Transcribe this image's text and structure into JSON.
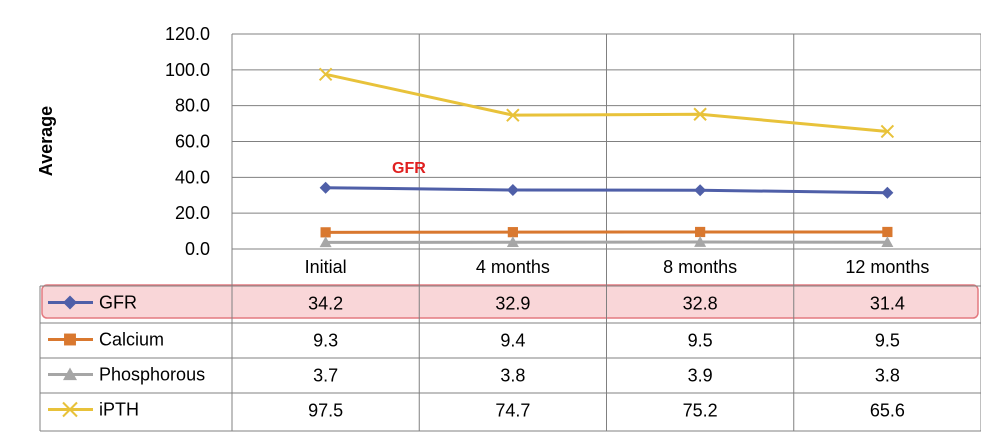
{
  "chart_data": {
    "type": "line",
    "title": "",
    "xlabel": "",
    "ylabel": "Average",
    "ylim": [
      0,
      120
    ],
    "yticks": [
      "120.0",
      "100.0",
      "80.0",
      "60.0",
      "40.0",
      "20.0",
      "0.0"
    ],
    "grid": true,
    "categories": [
      "Initial",
      "4 months",
      "8 months",
      "12 months"
    ],
    "series": [
      {
        "name": "GFR",
        "color": "#4F5FA8",
        "marker": "diamond",
        "values": [
          34.2,
          32.9,
          32.8,
          31.4
        ]
      },
      {
        "name": "Calcium",
        "color": "#D9782F",
        "marker": "square",
        "values": [
          9.3,
          9.4,
          9.5,
          9.5
        ]
      },
      {
        "name": "Phosphorous",
        "color": "#A6A6A6",
        "marker": "triangle",
        "values": [
          3.7,
          3.8,
          3.9,
          3.8
        ]
      },
      {
        "name": "iPTH",
        "color": "#E8C23A",
        "marker": "x",
        "values": [
          97.5,
          74.7,
          75.2,
          65.6
        ]
      }
    ],
    "data_table": [
      [
        "34.2",
        "32.9",
        "32.8",
        "31.4"
      ],
      [
        "9.3",
        "9.4",
        "9.5",
        "9.5"
      ],
      [
        "3.7",
        "3.8",
        "3.9",
        "3.8"
      ],
      [
        "97.5",
        "74.7",
        "75.2",
        "65.6"
      ]
    ],
    "annotations": [
      {
        "text": "GFR",
        "color": "#E02020"
      }
    ],
    "highlight_row": "GFR",
    "highlight_color": "#F9D6D8"
  }
}
